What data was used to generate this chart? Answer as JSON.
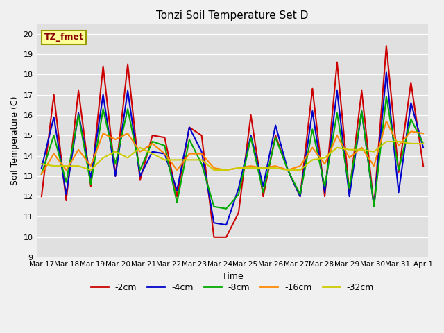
{
  "title": "Tonzi Soil Temperature Set D",
  "xlabel": "Time",
  "ylabel": "Soil Temperature (C)",
  "annotation": "TZ_fmet",
  "ylim": [
    9.0,
    20.5
  ],
  "yticks": [
    9.0,
    10.0,
    11.0,
    12.0,
    13.0,
    14.0,
    15.0,
    16.0,
    17.0,
    18.0,
    19.0,
    20.0
  ],
  "fig_bg": "#f0f0f0",
  "plot_bg": "#e0e0e0",
  "colors": {
    "-2cm": "#cc0000",
    "-4cm": "#0000cc",
    "-8cm": "#00aa00",
    "-16cm": "#ff8800",
    "-32cm": "#cccc00"
  },
  "legend_labels": [
    "-2cm",
    "-4cm",
    "-8cm",
    "-16cm",
    "-32cm"
  ],
  "x_tick_labels": [
    "Mar 17",
    "Mar 18",
    "Mar 19",
    "Mar 20",
    "Mar 21",
    "Mar 22",
    "Mar 23",
    "Mar 24",
    "Mar 25",
    "Mar 26",
    "Mar 27",
    "Mar 28",
    "Mar 29",
    "Mar 30",
    "Mar 31",
    "Apr 1"
  ],
  "n_days": 16,
  "pts_per_day": 2,
  "data": {
    "-2cm": [
      12.0,
      17.0,
      11.8,
      17.2,
      12.5,
      18.4,
      13.0,
      18.5,
      12.8,
      15.0,
      14.9,
      12.0,
      15.4,
      15.0,
      10.0,
      10.0,
      11.2,
      16.0,
      12.0,
      15.0,
      13.3,
      12.0,
      17.3,
      12.0,
      18.6,
      12.2,
      17.2,
      11.5,
      19.4,
      13.2,
      17.6,
      13.5
    ],
    "-4cm": [
      13.4,
      15.9,
      12.1,
      16.1,
      12.9,
      17.0,
      13.0,
      17.2,
      13.0,
      14.2,
      14.1,
      12.3,
      15.4,
      14.2,
      10.7,
      10.6,
      12.4,
      15.0,
      12.5,
      15.5,
      13.3,
      12.0,
      16.2,
      12.2,
      17.2,
      12.0,
      16.2,
      11.5,
      18.1,
      12.2,
      16.6,
      14.4
    ],
    "-8cm": [
      13.1,
      15.0,
      12.7,
      16.0,
      12.6,
      16.3,
      13.6,
      16.3,
      13.3,
      14.7,
      14.5,
      11.7,
      14.8,
      13.6,
      11.5,
      11.4,
      12.1,
      14.9,
      12.2,
      14.9,
      13.3,
      12.1,
      15.3,
      12.5,
      16.1,
      12.4,
      16.2,
      11.5,
      16.9,
      13.3,
      15.8,
      14.6
    ],
    "-16cm": [
      13.1,
      14.1,
      13.3,
      14.3,
      13.5,
      15.1,
      14.8,
      15.1,
      14.2,
      14.6,
      14.1,
      13.3,
      14.1,
      14.1,
      13.4,
      13.3,
      13.4,
      13.5,
      13.4,
      13.5,
      13.3,
      13.5,
      14.4,
      13.6,
      15.0,
      13.9,
      14.4,
      13.5,
      15.7,
      14.5,
      15.2,
      15.1
    ],
    "-32cm": [
      13.6,
      13.5,
      13.5,
      13.5,
      13.3,
      13.9,
      14.2,
      13.9,
      14.4,
      14.1,
      13.8,
      13.8,
      13.8,
      13.8,
      13.3,
      13.3,
      13.4,
      13.4,
      13.4,
      13.4,
      13.3,
      13.3,
      13.8,
      13.9,
      14.4,
      14.3,
      14.3,
      14.2,
      14.7,
      14.7,
      14.6,
      14.6
    ]
  },
  "title_fontsize": 11,
  "axis_label_fontsize": 9,
  "tick_fontsize": 8,
  "annot_fontsize": 9,
  "legend_fontsize": 9,
  "linewidth": 1.5
}
